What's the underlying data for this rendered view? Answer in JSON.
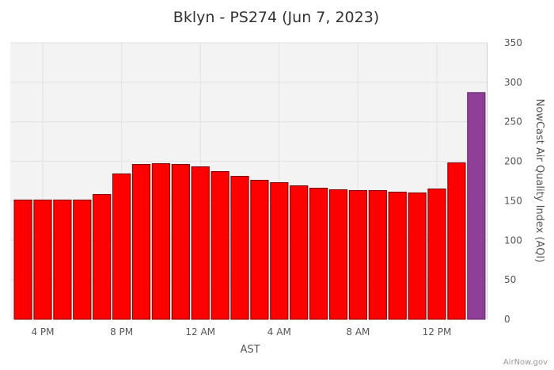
{
  "chart_data": {
    "type": "bar",
    "title": "Bklyn - PS274 (Jun 7, 2023)",
    "xlabel": "AST",
    "ylabel": "NowCast Air Quality Index (AQI)",
    "ylim": [
      0,
      350
    ],
    "yticks": [
      0,
      50,
      100,
      150,
      200,
      250,
      300,
      350
    ],
    "xtick_labels": [
      {
        "index": 1,
        "label": "4 PM"
      },
      {
        "index": 5,
        "label": "8 PM"
      },
      {
        "index": 9,
        "label": "12 AM"
      },
      {
        "index": 13,
        "label": "4 AM"
      },
      {
        "index": 17,
        "label": "8 AM"
      },
      {
        "index": 21,
        "label": "12 PM"
      }
    ],
    "values": [
      151,
      151,
      151,
      151,
      158,
      184,
      196,
      197,
      196,
      193,
      187,
      181,
      176,
      173,
      169,
      166,
      164,
      163,
      163,
      161,
      160,
      165,
      198,
      287
    ],
    "bar_colors": [
      "#ff0000",
      "#ff0000",
      "#ff0000",
      "#ff0000",
      "#ff0000",
      "#ff0000",
      "#ff0000",
      "#ff0000",
      "#ff0000",
      "#ff0000",
      "#ff0000",
      "#ff0000",
      "#ff0000",
      "#ff0000",
      "#ff0000",
      "#ff0000",
      "#ff0000",
      "#ff0000",
      "#ff0000",
      "#ff0000",
      "#ff0000",
      "#ff0000",
      "#ff0000",
      "#8f3f97"
    ],
    "grid": true,
    "plot_background": "#f3f3f3",
    "credit": "AirNow.gov"
  }
}
